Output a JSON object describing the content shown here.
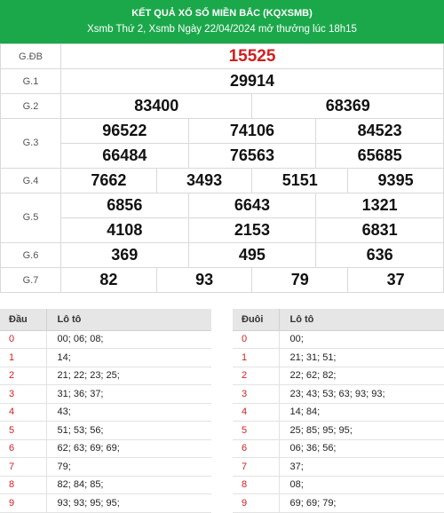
{
  "header": {
    "title": "KẾT QUẢ XỔ SỐ MIỀN BẮC (KQXSMB)",
    "subtitle": "Xsmb Thứ 2, Xsmb Ngày 22/04/2024 mở thưởng lúc 18h15"
  },
  "prizes": {
    "gdb": {
      "label": "G.ĐB",
      "numbers": [
        "15525"
      ]
    },
    "g1": {
      "label": "G.1",
      "numbers": [
        "29914"
      ]
    },
    "g2": {
      "label": "G.2",
      "numbers": [
        "83400",
        "68369"
      ]
    },
    "g3": {
      "label": "G.3",
      "numbers": [
        "96522",
        "74106",
        "84523",
        "66484",
        "76563",
        "65685"
      ]
    },
    "g4": {
      "label": "G.4",
      "numbers": [
        "7662",
        "3493",
        "5151",
        "9395"
      ]
    },
    "g5": {
      "label": "G.5",
      "numbers": [
        "6856",
        "6643",
        "1321",
        "4108",
        "2153",
        "6831"
      ]
    },
    "g6": {
      "label": "G.6",
      "numbers": [
        "369",
        "495",
        "636"
      ]
    },
    "g7": {
      "label": "G.7",
      "numbers": [
        "82",
        "93",
        "79",
        "37"
      ]
    }
  },
  "dau": {
    "header": [
      "Đầu",
      "Lô tô"
    ],
    "rows": [
      [
        "0",
        "00; 06; 08;"
      ],
      [
        "1",
        "14;"
      ],
      [
        "2",
        "21; 22; 23; 25;"
      ],
      [
        "3",
        "31; 36; 37;"
      ],
      [
        "4",
        "43;"
      ],
      [
        "5",
        "51; 53; 56;"
      ],
      [
        "6",
        "62; 63; 69; 69;"
      ],
      [
        "7",
        "79;"
      ],
      [
        "8",
        "82; 84; 85;"
      ],
      [
        "9",
        "93; 93; 95; 95;"
      ]
    ]
  },
  "duoi": {
    "header": [
      "Đuôi",
      "Lô tô"
    ],
    "rows": [
      [
        "0",
        "00;"
      ],
      [
        "1",
        "21; 31; 51;"
      ],
      [
        "2",
        "22; 62; 82;"
      ],
      [
        "3",
        "23; 43; 53; 63; 93; 93;"
      ],
      [
        "4",
        "14; 84;"
      ],
      [
        "5",
        "25; 85; 95; 95;"
      ],
      [
        "6",
        "06; 36; 56;"
      ],
      [
        "7",
        "37;"
      ],
      [
        "8",
        "08;"
      ],
      [
        "9",
        "69; 69; 79;"
      ]
    ]
  },
  "colors": {
    "header_bg": "#1aa84a",
    "special": "#d11f1f",
    "head_red": "#d11f1f"
  }
}
